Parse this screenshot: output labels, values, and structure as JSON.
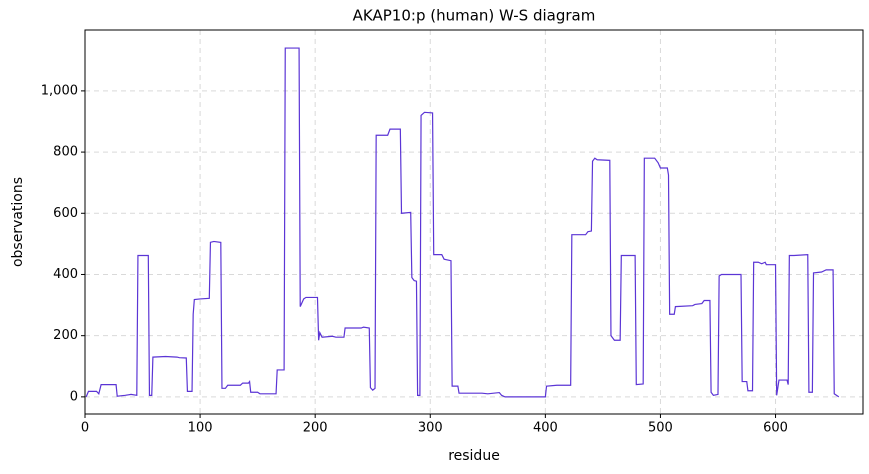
{
  "chart_data": {
    "type": "line",
    "title": "AKAP10:p (human) W-S diagram",
    "x_label": "residue",
    "y_label": "observations",
    "color": "#5b35d5",
    "grid": true,
    "xlim": [
      0,
      676
    ],
    "ylim": [
      -56,
      1199
    ],
    "xticks": [
      0,
      100,
      200,
      300,
      400,
      500,
      600
    ],
    "yticks": [
      0,
      200,
      400,
      600,
      800,
      {
        "value": 1000,
        "label": "1,000"
      }
    ],
    "x": [
      1,
      3,
      10,
      12,
      14,
      27,
      28,
      35,
      40,
      45,
      46,
      55,
      56,
      58,
      59,
      70,
      80,
      82,
      88,
      89,
      93,
      94,
      95,
      100,
      108,
      109,
      112,
      118,
      119,
      122,
      124,
      135,
      137,
      142,
      143,
      144,
      150,
      152,
      166,
      167,
      173,
      174,
      186,
      187,
      190,
      192,
      202,
      203,
      204,
      206,
      215,
      218,
      225,
      226,
      240,
      242,
      247,
      248,
      250,
      252,
      253,
      263,
      265,
      274,
      275,
      283,
      284,
      286,
      288,
      289,
      291,
      292,
      295,
      302,
      303,
      310,
      312,
      318,
      319,
      324,
      325,
      345,
      350,
      360,
      362,
      365,
      400,
      401,
      410,
      422,
      423,
      435,
      437,
      440,
      441,
      443,
      445,
      456,
      457,
      460,
      465,
      466,
      478,
      479,
      485,
      486,
      495,
      498,
      500,
      506,
      507,
      508,
      512,
      513,
      528,
      530,
      536,
      538,
      543,
      544,
      546,
      550,
      551,
      553,
      570,
      571,
      575,
      576,
      580,
      581,
      585,
      588,
      591,
      592,
      600,
      601,
      603,
      610,
      611,
      612,
      616,
      628,
      629,
      632,
      633,
      640,
      644,
      650,
      651,
      655
    ],
    "values": [
      0,
      18,
      18,
      10,
      40,
      40,
      2,
      5,
      8,
      5,
      462,
      462,
      5,
      5,
      130,
      132,
      130,
      128,
      127,
      18,
      18,
      270,
      318,
      320,
      322,
      505,
      508,
      505,
      28,
      28,
      38,
      38,
      45,
      45,
      50,
      15,
      15,
      10,
      10,
      88,
      88,
      1140,
      1140,
      295,
      320,
      325,
      325,
      185,
      210,
      195,
      198,
      195,
      195,
      225,
      225,
      228,
      225,
      30,
      22,
      28,
      855,
      855,
      875,
      875,
      600,
      603,
      390,
      380,
      378,
      5,
      5,
      920,
      930,
      928,
      465,
      465,
      450,
      445,
      35,
      35,
      12,
      12,
      10,
      14,
      5,
      0,
      0,
      35,
      38,
      38,
      530,
      530,
      540,
      542,
      770,
      780,
      775,
      773,
      200,
      185,
      185,
      462,
      462,
      40,
      42,
      780,
      780,
      765,
      748,
      748,
      725,
      270,
      270,
      295,
      298,
      302,
      305,
      315,
      315,
      15,
      5,
      8,
      395,
      400,
      400,
      50,
      50,
      20,
      20,
      440,
      440,
      435,
      440,
      432,
      432,
      5,
      55,
      55,
      40,
      462,
      462,
      465,
      15,
      15,
      405,
      408,
      415,
      415,
      10,
      0
    ]
  }
}
